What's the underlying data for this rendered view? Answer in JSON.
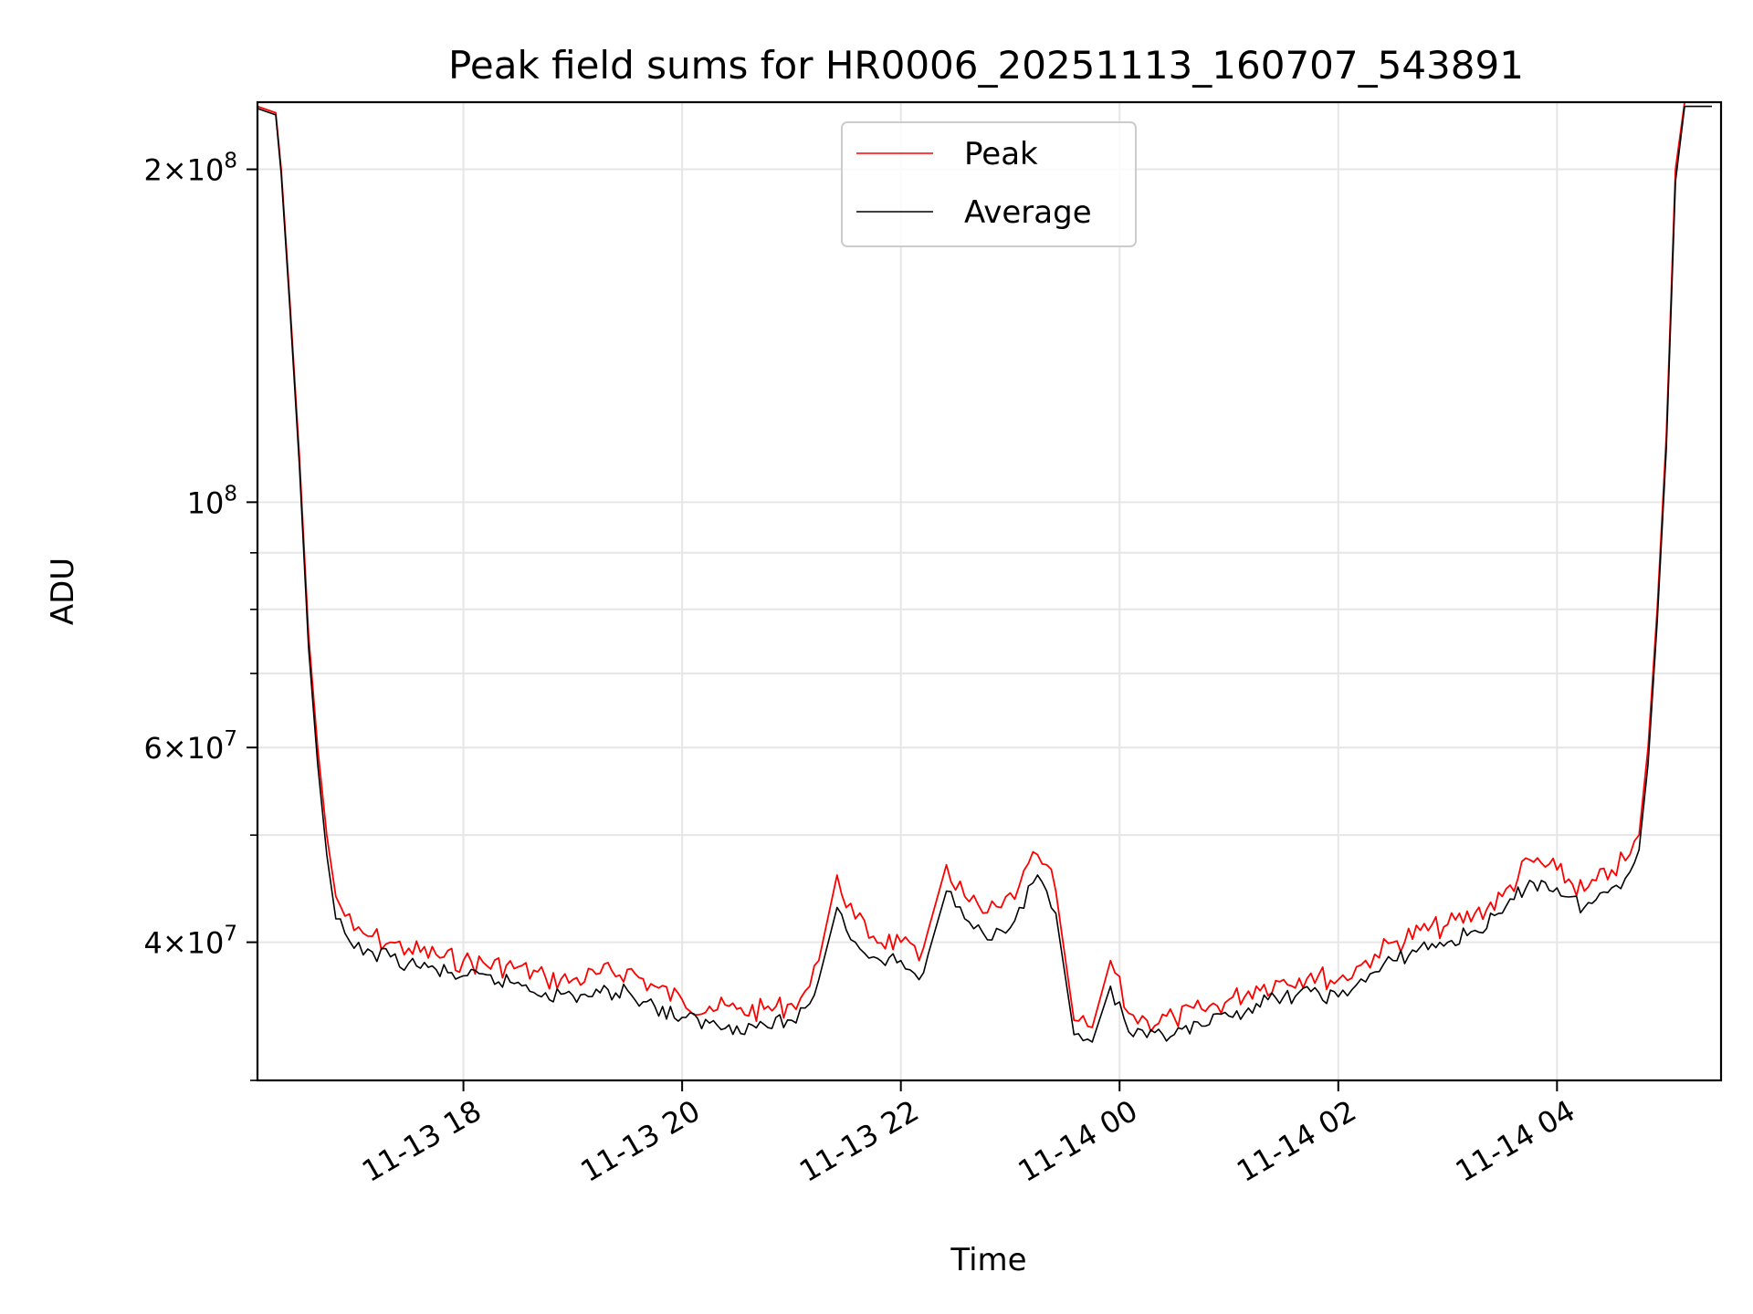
{
  "chart_data": {
    "type": "line",
    "title": "Peak field sums for HR0006_20251113_160707_543891",
    "xlabel": "Time",
    "ylabel": "ADU",
    "y_scale": "log",
    "ylim": [
      30000000,
      230000000
    ],
    "xlim": [
      "2025-11-13 16:07",
      "2025-11-14 05:30"
    ],
    "grid": true,
    "legend_position": "upper center",
    "x_ticks": [
      {
        "value": "2025-11-13 18:00",
        "label": "11-13 18"
      },
      {
        "value": "2025-11-13 20:00",
        "label": "11-13 20"
      },
      {
        "value": "2025-11-13 22:00",
        "label": "11-13 22"
      },
      {
        "value": "2025-11-14 00:00",
        "label": "11-14 00"
      },
      {
        "value": "2025-11-14 02:00",
        "label": "11-14 02"
      },
      {
        "value": "2025-11-14 04:00",
        "label": "11-14 04"
      }
    ],
    "y_ticks": [
      {
        "value": 40000000,
        "base": "4",
        "exp": "7"
      },
      {
        "value": 60000000,
        "base": "6",
        "exp": "7"
      },
      {
        "value": 100000000,
        "base": "",
        "exp": "8"
      },
      {
        "value": 200000000,
        "base": "2",
        "exp": "8"
      }
    ],
    "series": [
      {
        "name": "Peak",
        "color": "#ff0000",
        "x": [
          "2025-11-13 16:07",
          "2025-11-13 16:17",
          "2025-11-13 16:20",
          "2025-11-13 16:25",
          "2025-11-13 16:30",
          "2025-11-13 16:35",
          "2025-11-13 16:40",
          "2025-11-13 16:45",
          "2025-11-13 16:50",
          "2025-11-13 17:00",
          "2025-11-13 17:10",
          "2025-11-13 17:20",
          "2025-11-13 17:30",
          "2025-11-13 17:45",
          "2025-11-13 18:00",
          "2025-11-13 18:30",
          "2025-11-13 18:45",
          "2025-11-13 19:00",
          "2025-11-13 19:15",
          "2025-11-13 19:30",
          "2025-11-13 19:45",
          "2025-11-13 20:00",
          "2025-11-13 20:15",
          "2025-11-13 20:30",
          "2025-11-13 20:45",
          "2025-11-13 21:00",
          "2025-11-13 21:10",
          "2025-11-13 21:15",
          "2025-11-13 21:25",
          "2025-11-13 21:35",
          "2025-11-13 21:45",
          "2025-11-13 22:00",
          "2025-11-13 22:10",
          "2025-11-13 22:15",
          "2025-11-13 22:25",
          "2025-11-13 22:35",
          "2025-11-13 22:45",
          "2025-11-13 22:55",
          "2025-11-13 23:05",
          "2025-11-13 23:15",
          "2025-11-13 23:20",
          "2025-11-13 23:25",
          "2025-11-13 23:35",
          "2025-11-13 23:45",
          "2025-11-13 23:55",
          "2025-11-14 00:05",
          "2025-11-14 00:15",
          "2025-11-14 00:30",
          "2025-11-14 00:45",
          "2025-11-14 01:00",
          "2025-11-14 01:15",
          "2025-11-14 01:30",
          "2025-11-14 01:45",
          "2025-11-14 02:00",
          "2025-11-14 02:10",
          "2025-11-14 02:20",
          "2025-11-14 02:30",
          "2025-11-14 02:45",
          "2025-11-14 03:00",
          "2025-11-14 03:15",
          "2025-11-14 03:30",
          "2025-11-14 03:45",
          "2025-11-14 04:00",
          "2025-11-14 04:15",
          "2025-11-14 04:30",
          "2025-11-14 04:40",
          "2025-11-14 04:45",
          "2025-11-14 04:50",
          "2025-11-14 04:55",
          "2025-11-14 05:00",
          "2025-11-14 05:05",
          "2025-11-14 05:10",
          "2025-11-14 05:15",
          "2025-11-14 05:20",
          "2025-11-14 05:25"
        ],
        "y": [
          228000000,
          225000000,
          200000000,
          150000000,
          110000000,
          76000000,
          60000000,
          50000000,
          44000000,
          41000000,
          40500000,
          40000000,
          39500000,
          39000000,
          38500000,
          38000000,
          37200000,
          37000000,
          37500000,
          37800000,
          36500000,
          35500000,
          35000000,
          34800000,
          34800000,
          35200000,
          36500000,
          38500000,
          46000000,
          42000000,
          40500000,
          40000000,
          38500000,
          41000000,
          47000000,
          44000000,
          42500000,
          43000000,
          45000000,
          48000000,
          47000000,
          44500000,
          34000000,
          33500000,
          38500000,
          34500000,
          34000000,
          34200000,
          34800000,
          35500000,
          36500000,
          37000000,
          37500000,
          37000000,
          38000000,
          39000000,
          40000000,
          41000000,
          41500000,
          42500000,
          44000000,
          47500000,
          46500000,
          44500000,
          46500000,
          48000000,
          50000000,
          60000000,
          80000000,
          115000000,
          200000000,
          230000000,
          230000000,
          230000000,
          230000000
        ]
      },
      {
        "name": "Average",
        "color": "#000000",
        "x": [
          "2025-11-13 16:07",
          "2025-11-13 16:17",
          "2025-11-13 16:20",
          "2025-11-13 16:25",
          "2025-11-13 16:30",
          "2025-11-13 16:35",
          "2025-11-13 16:40",
          "2025-11-13 16:45",
          "2025-11-13 16:50",
          "2025-11-13 17:00",
          "2025-11-13 17:10",
          "2025-11-13 17:20",
          "2025-11-13 17:30",
          "2025-11-13 17:45",
          "2025-11-13 18:00",
          "2025-11-13 18:30",
          "2025-11-13 18:45",
          "2025-11-13 19:00",
          "2025-11-13 19:15",
          "2025-11-13 19:30",
          "2025-11-13 19:45",
          "2025-11-13 20:00",
          "2025-11-13 20:15",
          "2025-11-13 20:30",
          "2025-11-13 20:45",
          "2025-11-13 21:00",
          "2025-11-13 21:10",
          "2025-11-13 21:15",
          "2025-11-13 21:25",
          "2025-11-13 21:35",
          "2025-11-13 21:45",
          "2025-11-13 22:00",
          "2025-11-13 22:10",
          "2025-11-13 22:15",
          "2025-11-13 22:25",
          "2025-11-13 22:35",
          "2025-11-13 22:45",
          "2025-11-13 22:55",
          "2025-11-13 23:05",
          "2025-11-13 23:15",
          "2025-11-13 23:20",
          "2025-11-13 23:25",
          "2025-11-13 23:35",
          "2025-11-13 23:45",
          "2025-11-13 23:55",
          "2025-11-14 00:05",
          "2025-11-14 00:15",
          "2025-11-14 00:30",
          "2025-11-14 00:45",
          "2025-11-14 01:00",
          "2025-11-14 01:15",
          "2025-11-14 01:30",
          "2025-11-14 01:45",
          "2025-11-14 02:00",
          "2025-11-14 02:10",
          "2025-11-14 02:20",
          "2025-11-14 02:30",
          "2025-11-14 02:45",
          "2025-11-14 03:00",
          "2025-11-14 03:15",
          "2025-11-14 03:30",
          "2025-11-14 03:45",
          "2025-11-14 04:00",
          "2025-11-14 04:15",
          "2025-11-14 04:30",
          "2025-11-14 04:40",
          "2025-11-14 04:45",
          "2025-11-14 04:50",
          "2025-11-14 04:55",
          "2025-11-14 05:00",
          "2025-11-14 05:05",
          "2025-11-14 05:10",
          "2025-11-14 05:15",
          "2025-11-14 05:20",
          "2025-11-14 05:25"
        ],
        "y": [
          227000000,
          224000000,
          198000000,
          148000000,
          108000000,
          74000000,
          58000000,
          48000000,
          42000000,
          39500000,
          39200000,
          38800000,
          38300000,
          37800000,
          37300000,
          36800000,
          36000000,
          35800000,
          36000000,
          36200000,
          35000000,
          34200000,
          33800000,
          33600000,
          33700000,
          34000000,
          35200000,
          37000000,
          43000000,
          40000000,
          38800000,
          38500000,
          37000000,
          39000000,
          44500000,
          42000000,
          40800000,
          41000000,
          43000000,
          46000000,
          44500000,
          42500000,
          33000000,
          32500000,
          36500000,
          33200000,
          32800000,
          33000000,
          33600000,
          34300000,
          35200000,
          35700000,
          36100000,
          35700000,
          36600000,
          37600000,
          38500000,
          39600000,
          40000000,
          41000000,
          42500000,
          45500000,
          44800000,
          43000000,
          44800000,
          46300000,
          48500000,
          58000000,
          78000000,
          112000000,
          195000000,
          228000000,
          228000000,
          228000000,
          228000000
        ]
      }
    ]
  }
}
